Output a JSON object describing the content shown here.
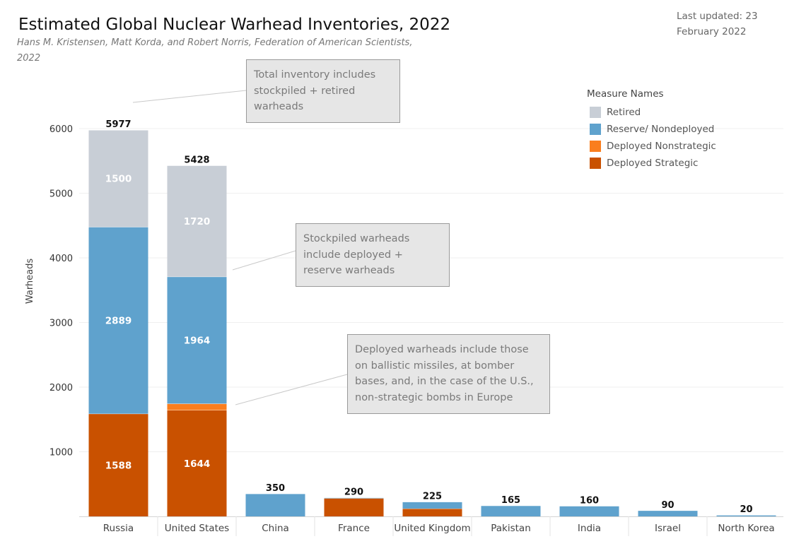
{
  "header": {
    "title": "Estimated Global Nuclear Warhead Inventories, 2022",
    "subtitle": "Hans M. Kristensen, Matt Korda, and Robert Norris, Federation of American Scientists, 2022",
    "last_updated": "Last updated: 23 February 2022"
  },
  "annotations": {
    "total": "Total inventory includes stockpiled + retired warheads",
    "stockpiled": "Stockpiled warheads include deployed + reserve warheads",
    "deployed": "Deployed warheads include those on ballistic missiles, at bomber bases, and, in the case of the U.S., non-strategic bombs in Europe"
  },
  "legend": {
    "title": "Measure Names",
    "items": [
      {
        "label": "Retired",
        "color": "#c8ced6"
      },
      {
        "label": "Reserve/ Nondeployed",
        "color": "#5fa2cd"
      },
      {
        "label": "Deployed Nonstrategic",
        "color": "#fa7e1e"
      },
      {
        "label": "Deployed Strategic",
        "color": "#c95100"
      }
    ]
  },
  "chart_data": {
    "type": "bar",
    "stacked": true,
    "title": "Estimated Global Nuclear Warhead Inventories, 2022",
    "xlabel": "",
    "ylabel": "Warheads",
    "ylim": [
      0,
      6000
    ],
    "yticks": [
      1000,
      2000,
      3000,
      4000,
      5000,
      6000
    ],
    "grid": true,
    "categories": [
      "Russia",
      "United States",
      "China",
      "France",
      "United Kingdom",
      "Pakistan",
      "India",
      "Israel",
      "North Korea"
    ],
    "series": [
      {
        "name": "Deployed Strategic",
        "color": "#c95100",
        "values": [
          1588,
          1644,
          0,
          280,
          120,
          0,
          0,
          0,
          0
        ],
        "labels": [
          "1588",
          "1644",
          "",
          "",
          "",
          "",
          "",
          "",
          ""
        ]
      },
      {
        "name": "Deployed Nonstrategic",
        "color": "#fa7e1e",
        "values": [
          0,
          100,
          0,
          0,
          0,
          0,
          0,
          0,
          0
        ],
        "labels": [
          "",
          "",
          "",
          "",
          "",
          "",
          "",
          "",
          ""
        ]
      },
      {
        "name": "Reserve/ Nondeployed",
        "color": "#5fa2cd",
        "values": [
          2889,
          1964,
          350,
          10,
          105,
          165,
          160,
          90,
          20
        ],
        "labels": [
          "2889",
          "1964",
          "",
          "",
          "",
          "",
          "",
          "",
          ""
        ]
      },
      {
        "name": "Retired",
        "color": "#c8ced6",
        "values": [
          1500,
          1720,
          0,
          0,
          0,
          0,
          0,
          0,
          0
        ],
        "labels": [
          "1500",
          "1720",
          "",
          "",
          "",
          "",
          "",
          "",
          ""
        ]
      }
    ],
    "totals": [
      5977,
      5428,
      350,
      290,
      225,
      165,
      160,
      90,
      20
    ],
    "legend_position": "top-right"
  }
}
